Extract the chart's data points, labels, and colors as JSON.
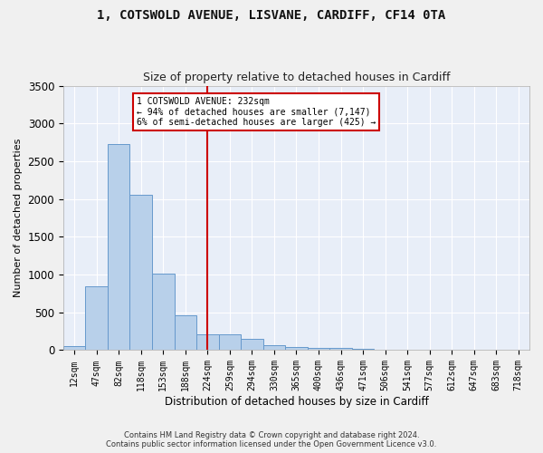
{
  "title1": "1, COTSWOLD AVENUE, LISVANE, CARDIFF, CF14 0TA",
  "title2": "Size of property relative to detached houses in Cardiff",
  "xlabel": "Distribution of detached houses by size in Cardiff",
  "ylabel": "Number of detached properties",
  "bar_labels": [
    "12sqm",
    "47sqm",
    "82sqm",
    "118sqm",
    "153sqm",
    "188sqm",
    "224sqm",
    "259sqm",
    "294sqm",
    "330sqm",
    "365sqm",
    "400sqm",
    "436sqm",
    "471sqm",
    "506sqm",
    "541sqm",
    "577sqm",
    "612sqm",
    "647sqm",
    "683sqm",
    "718sqm"
  ],
  "bar_values": [
    55,
    840,
    2730,
    2060,
    1010,
    460,
    215,
    215,
    145,
    60,
    40,
    35,
    25,
    20,
    10,
    5,
    10,
    5,
    3,
    2,
    3
  ],
  "bar_color": "#b8d0ea",
  "bar_edge_color": "#6699cc",
  "background_color": "#e8eef8",
  "grid_color": "#ffffff",
  "vline_x_index": 6,
  "vline_color": "#cc0000",
  "annotation_lines": [
    "1 COTSWOLD AVENUE: 232sqm",
    "← 94% of detached houses are smaller (7,147)",
    "6% of semi-detached houses are larger (425) →"
  ],
  "footnote1": "Contains HM Land Registry data © Crown copyright and database right 2024.",
  "footnote2": "Contains public sector information licensed under the Open Government Licence v3.0.",
  "ylim": [
    0,
    3500
  ],
  "fig_bg": "#f0f0f0"
}
